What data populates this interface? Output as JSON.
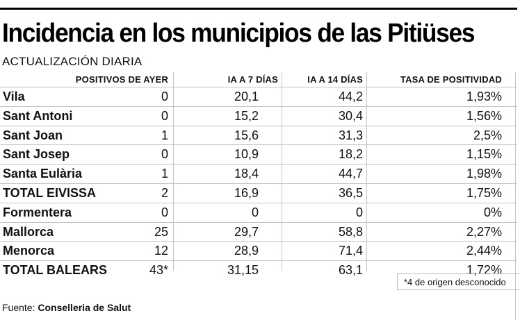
{
  "title": "Incidencia en los municipios de las Pitiüses",
  "subtitle": "ACTUALIZACIÓN DIARIA",
  "table": {
    "headers": [
      "POSITIVOS DE AYER",
      "IA A 7 DÍAS",
      "IA A 14 DÍAS",
      "TASA DE POSITIVIDAD"
    ],
    "rows": [
      {
        "name": "Vila",
        "c1": "0",
        "c2": "20,1",
        "c3": "44,2",
        "c4": "1,93%"
      },
      {
        "name": "Sant Antoni",
        "c1": "0",
        "c2": "15,2",
        "c3": "30,4",
        "c4": "1,56%"
      },
      {
        "name": "Sant Joan",
        "c1": "1",
        "c2": "15,6",
        "c3": "31,3",
        "c4": "2,5%"
      },
      {
        "name": "Sant Josep",
        "c1": "0",
        "c2": "10,9",
        "c3": "18,2",
        "c4": "1,15%"
      },
      {
        "name": "Santa Eulària",
        "c1": "1",
        "c2": "18,4",
        "c3": "44,7",
        "c4": "1,98%"
      },
      {
        "name": "TOTAL EIVISSA",
        "c1": "2",
        "c2": "16,9",
        "c3": "36,5",
        "c4": "1,75%"
      },
      {
        "name": "Formentera",
        "c1": "0",
        "c2": "0",
        "c3": "0",
        "c4": "0%"
      },
      {
        "name": "Mallorca",
        "c1": "25",
        "c2": "29,7",
        "c3": "58,8",
        "c4": "2,27%"
      },
      {
        "name": "Menorca",
        "c1": "12",
        "c2": "28,9",
        "c3": "71,4",
        "c4": "2,44%"
      },
      {
        "name": "TOTAL BALEARS",
        "c1": "43*",
        "c2": "31,15",
        "c3": "63,1",
        "c4": "1,72%"
      }
    ]
  },
  "footnote": "*4 de origen desconocido",
  "source": {
    "label": "Fuente: ",
    "org": "Conselleria de Salut"
  }
}
